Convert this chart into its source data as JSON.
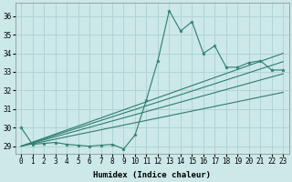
{
  "xlabel": "Humidex (Indice chaleur)",
  "ylabel": "",
  "xlim": [
    -0.5,
    23.5
  ],
  "ylim": [
    28.6,
    36.7
  ],
  "yticks": [
    29,
    30,
    31,
    32,
    33,
    34,
    35,
    36
  ],
  "xticks": [
    0,
    1,
    2,
    3,
    4,
    5,
    6,
    7,
    8,
    9,
    10,
    11,
    12,
    13,
    14,
    15,
    16,
    17,
    18,
    19,
    20,
    21,
    22,
    23
  ],
  "bg_color": "#cce8e8",
  "grid_color": "#b0d4d4",
  "line_color": "#2e7d6e",
  "wiggly_line": {
    "x": [
      0,
      1,
      2,
      3,
      4,
      5,
      6,
      7,
      8,
      9,
      10,
      11,
      12,
      13,
      14,
      15,
      16,
      17,
      18,
      19,
      20,
      21,
      22,
      23
    ],
    "y": [
      30.0,
      29.1,
      29.15,
      29.2,
      29.1,
      29.05,
      29.0,
      29.05,
      29.1,
      28.85,
      29.6,
      31.5,
      33.6,
      36.3,
      35.2,
      35.7,
      34.0,
      34.4,
      33.25,
      33.25,
      33.5,
      33.6,
      33.1,
      33.1
    ]
  },
  "straight_lines": [
    {
      "x": [
        0,
        23
      ],
      "y": [
        29.0,
        31.9
      ]
    },
    {
      "x": [
        0,
        23
      ],
      "y": [
        29.0,
        32.9
      ]
    },
    {
      "x": [
        0,
        23
      ],
      "y": [
        29.0,
        33.55
      ]
    },
    {
      "x": [
        0,
        23
      ],
      "y": [
        29.0,
        34.0
      ]
    }
  ],
  "font_size_axis": 6.5,
  "font_size_ticks": 5.5
}
